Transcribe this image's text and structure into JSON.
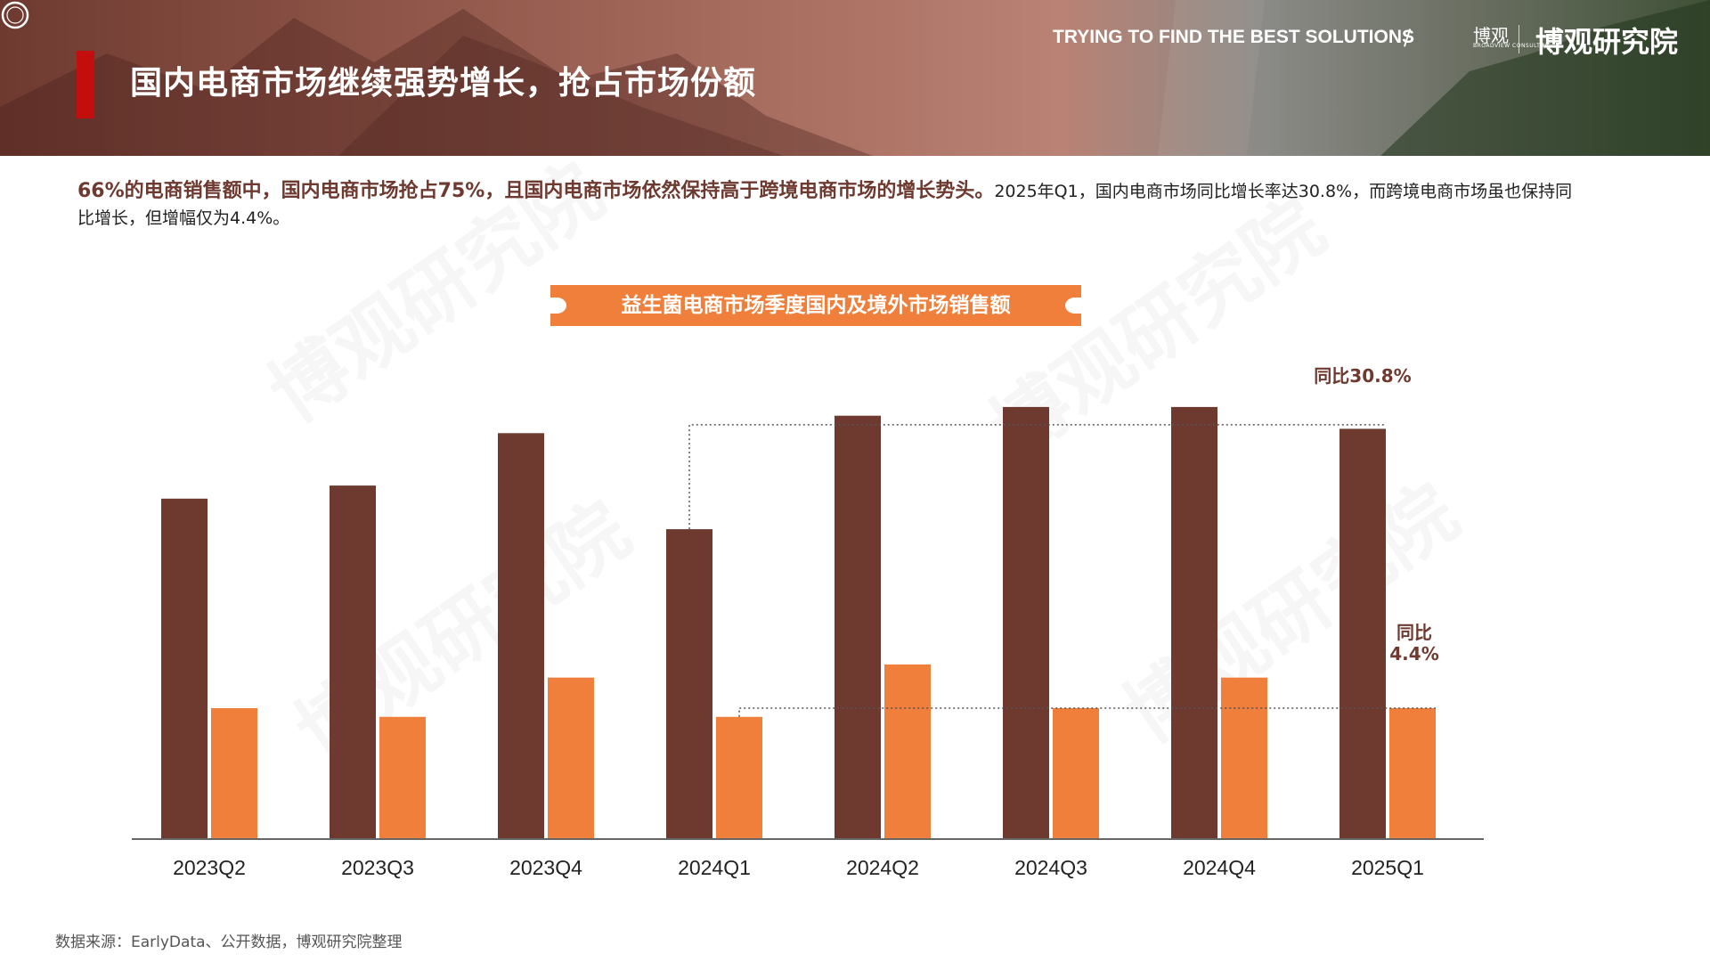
{
  "header": {
    "title": "国内电商市场继续强势增长，抢占市场份额",
    "tagline": "TRYING TO FIND THE BEST SOLUTIONS",
    "separator": "/",
    "logo_text": "博观",
    "logo_subtext": "BROADVIEW CONSULTING",
    "brand": "博观研究院"
  },
  "intro": {
    "highlight": "66%的电商销售额中，国内电商市场抢占75%，且国内电商市场依然保持高于跨境电商市场的增长势头。",
    "detail": "2025年Q1，国内电商市场同比增长率达30.8%，而跨境电商市场虽也保持同比增长，但增幅仅为4.4%。"
  },
  "chart_data": {
    "type": "bar",
    "title": "益生菌电商市场季度国内及境外市场销售额",
    "categories": [
      "2023Q2",
      "2023Q3",
      "2023Q4",
      "2024Q1",
      "2024Q2",
      "2024Q3",
      "2024Q4",
      "2025Q1"
    ],
    "series": [
      {
        "values": [
          78,
          81,
          93,
          71,
          97,
          99,
          99,
          94
        ]
      },
      {
        "values": [
          30,
          28,
          37,
          28,
          40,
          30,
          37,
          30
        ]
      }
    ],
    "colors": [
      "#6e3a30",
      "#ef7f3a"
    ],
    "ylim": [
      0,
      100
    ],
    "annotations": [
      {
        "text": "同比30.8%",
        "from": "2024Q1",
        "to": "2025Q1",
        "series": 0
      },
      {
        "text_line1": "同比",
        "text_line2": "4.4%",
        "from": "2024Q1",
        "to": "2025Q1",
        "series": 1
      }
    ],
    "grid": false,
    "legend": "none"
  },
  "source": "数据来源：EarlyData、公开数据，博观研究院整理",
  "watermark": "博观研究院"
}
